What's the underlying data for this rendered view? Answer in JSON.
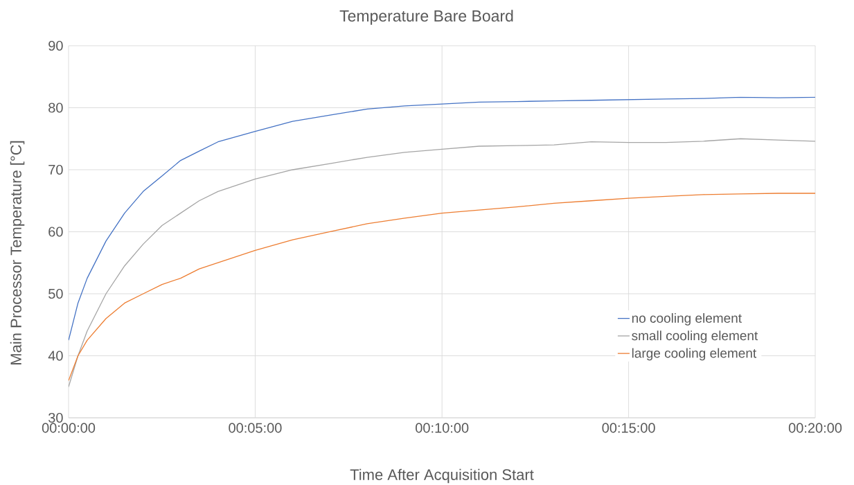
{
  "chart_data": {
    "type": "line",
    "title": "Temperature Bare Board",
    "xlabel": "Time After Acquisition Start",
    "ylabel": "Main Processor Temperature [°C]",
    "x": [
      0,
      0.0042,
      0.0083,
      0.0167,
      0.025,
      0.0333,
      0.0417,
      0.05,
      0.0583,
      0.0667,
      0.0833,
      0.1,
      0.1167,
      0.1333,
      0.15,
      0.1667,
      0.1833,
      0.2,
      0.2167,
      0.2333,
      0.25,
      0.2667,
      0.2833,
      0.3,
      0.3167,
      0.3333
    ],
    "series": [
      {
        "name": "no cooling element",
        "color": "#4472c4",
        "values": [
          42.5,
          48.5,
          52.5,
          58.5,
          63,
          66.5,
          69,
          71.5,
          73,
          74.5,
          76.2,
          77.8,
          78.8,
          79.8,
          80.3,
          80.6,
          80.9,
          81,
          81.1,
          81.2,
          81.3,
          81.4,
          81.5,
          81.7,
          81.6,
          81.7
        ]
      },
      {
        "name": "small cooling element",
        "color": "#a5a5a5",
        "values": [
          35,
          40,
          44,
          50,
          54.5,
          58,
          61,
          63,
          65,
          66.5,
          68.5,
          70,
          71,
          72,
          72.8,
          73.3,
          73.8,
          73.9,
          74,
          74.5,
          74.4,
          74.4,
          74.6,
          75,
          74.8,
          74.6
        ]
      },
      {
        "name": "large cooling element",
        "color": "#ed7d31",
        "values": [
          36,
          40,
          42.5,
          46,
          48.5,
          50,
          51.5,
          52.5,
          54,
          55,
          57,
          58.7,
          60,
          61.3,
          62.2,
          63,
          63.5,
          64,
          64.6,
          65,
          65.4,
          65.7,
          66,
          66.1,
          66.2,
          66.2
        ]
      }
    ],
    "xlim": [
      0,
      0.3333
    ],
    "xticks": [
      {
        "value": 0,
        "label": "00:00:00"
      },
      {
        "value": 0.0833,
        "label": "00:05:00"
      },
      {
        "value": 0.1667,
        "label": "00:10:00"
      },
      {
        "value": 0.25,
        "label": "00:15:00"
      },
      {
        "value": 0.3333,
        "label": "00:20:00"
      }
    ],
    "ylim": [
      30,
      90
    ],
    "yticks": [
      30,
      40,
      50,
      60,
      70,
      80,
      90
    ],
    "grid": true,
    "legend": "bottom right",
    "marker": "none",
    "line_style": "solid"
  }
}
